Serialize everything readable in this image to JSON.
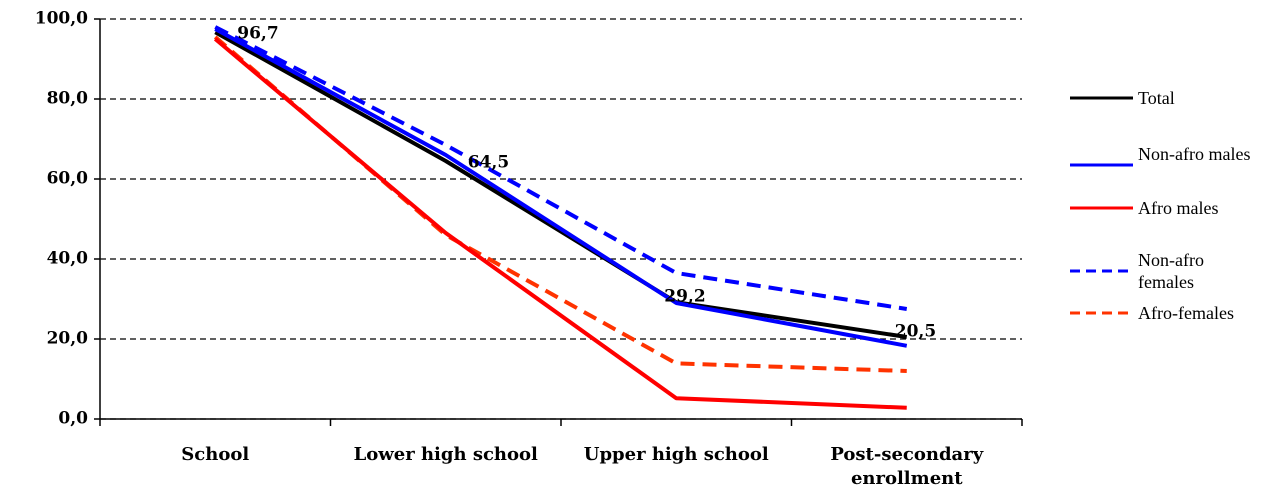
{
  "chart_data": {
    "type": "line",
    "categories": [
      "School",
      "Lower high school",
      "Upper high school",
      "Post-secondary enrollment"
    ],
    "series": [
      {
        "name": "Total",
        "color": "#000000",
        "dash": false,
        "values": [
          96.7,
          64.5,
          29.2,
          20.5
        ],
        "value_labels": [
          "96,7",
          "64,5",
          "29,2",
          "20,5"
        ]
      },
      {
        "name": "Non-afro males",
        "color": "#0000ff",
        "dash": false,
        "values": [
          97.5,
          66,
          29,
          18.3
        ]
      },
      {
        "name": "Afro males",
        "color": "#ff0000",
        "dash": false,
        "values": [
          95,
          46.5,
          5.2,
          2.8
        ]
      },
      {
        "name": "Non-afro females",
        "color": "#0000ff",
        "dash": true,
        "values": [
          98,
          68.5,
          36.5,
          27.5
        ]
      },
      {
        "name": "Afro-females",
        "color": "#ff3300",
        "dash": true,
        "values": [
          95.5,
          46,
          13.9,
          12
        ]
      }
    ],
    "ylim": [
      0,
      100
    ],
    "yticks": [
      {
        "value": 0,
        "label": "0,0"
      },
      {
        "value": 20,
        "label": "20,0"
      },
      {
        "value": 40,
        "label": "40,0"
      },
      {
        "value": 60,
        "label": "60,0"
      },
      {
        "value": 80,
        "label": "80,0"
      },
      {
        "value": 100,
        "label": "100,0"
      }
    ],
    "grid": true
  }
}
